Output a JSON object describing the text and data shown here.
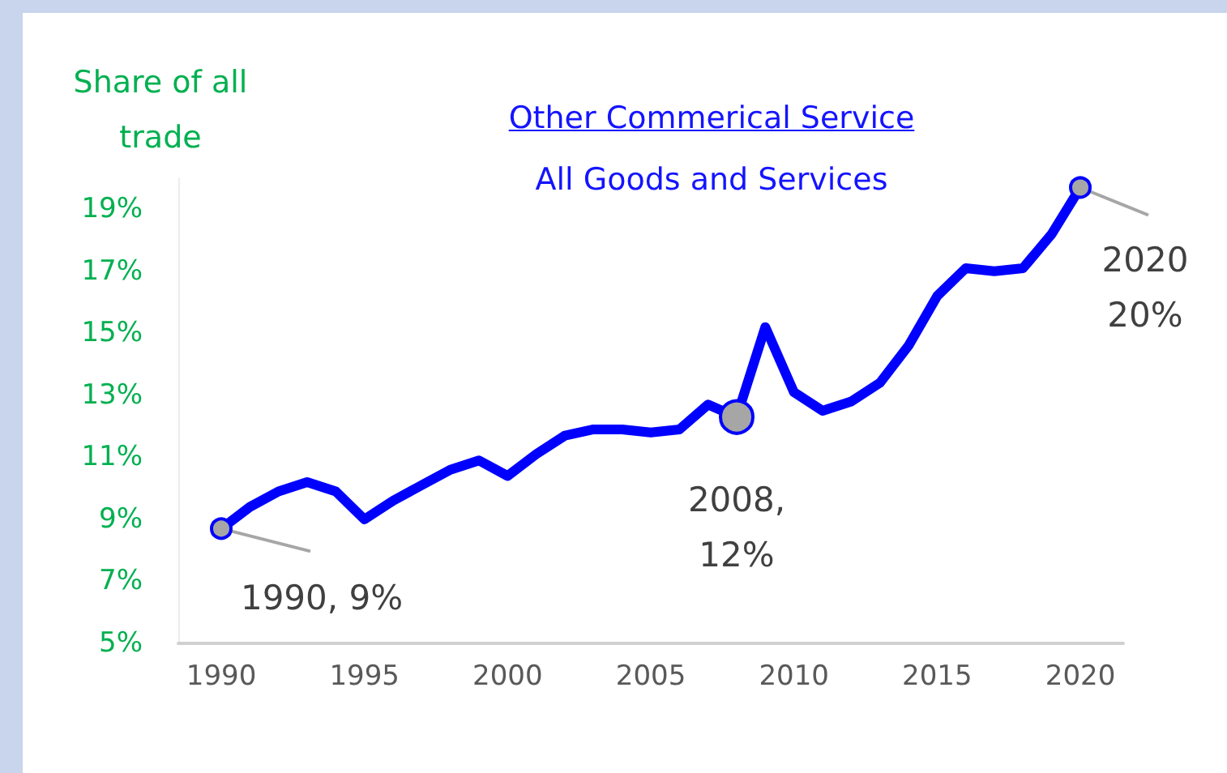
{
  "chart_data": {
    "type": "line",
    "title": "Other Commerical Service",
    "subtitle": "All Goods and Services",
    "ylabel": "Share of all trade",
    "x": [
      1990,
      1991,
      1992,
      1993,
      1994,
      1995,
      1996,
      1997,
      1998,
      1999,
      2000,
      2001,
      2002,
      2003,
      2004,
      2005,
      2006,
      2007,
      2008,
      2009,
      2010,
      2011,
      2012,
      2013,
      2014,
      2015,
      2016,
      2017,
      2018,
      2019,
      2020
    ],
    "series": [
      {
        "color": "#0000ff",
        "values": [
          8.7,
          9.4,
          9.9,
          10.2,
          9.9,
          9.0,
          9.6,
          10.1,
          10.6,
          10.9,
          10.4,
          11.1,
          11.7,
          11.9,
          11.9,
          11.8,
          11.9,
          12.7,
          12.3,
          15.2,
          13.1,
          12.5,
          12.8,
          13.4,
          14.6,
          16.2,
          17.1,
          17.0,
          17.1,
          18.2,
          19.7
        ]
      }
    ],
    "xlim": [
      1988.5,
      2021.5
    ],
    "xticks": [
      1990,
      1995,
      2000,
      2005,
      2010,
      2015,
      2020
    ],
    "ylim": [
      5,
      20
    ],
    "yticks": [
      {
        "value": 5,
        "label": "5%"
      },
      {
        "value": 7,
        "label": "7%"
      },
      {
        "value": 9,
        "label": "9%"
      },
      {
        "value": 11,
        "label": "11%"
      },
      {
        "value": 13,
        "label": "13%"
      },
      {
        "value": 15,
        "label": "15%"
      },
      {
        "value": 17,
        "label": "17%"
      },
      {
        "value": 19,
        "label": "19%"
      }
    ],
    "annotations": [
      {
        "text": "1990, 9%",
        "x": 1990,
        "y": 8.7
      },
      {
        "text": "2008,\n12%",
        "x": 2008,
        "y": 12.3
      },
      {
        "text": "2020\n20%",
        "x": 2020,
        "y": 19.7
      }
    ],
    "grid": false,
    "marker": "none",
    "line_style": "solid"
  }
}
